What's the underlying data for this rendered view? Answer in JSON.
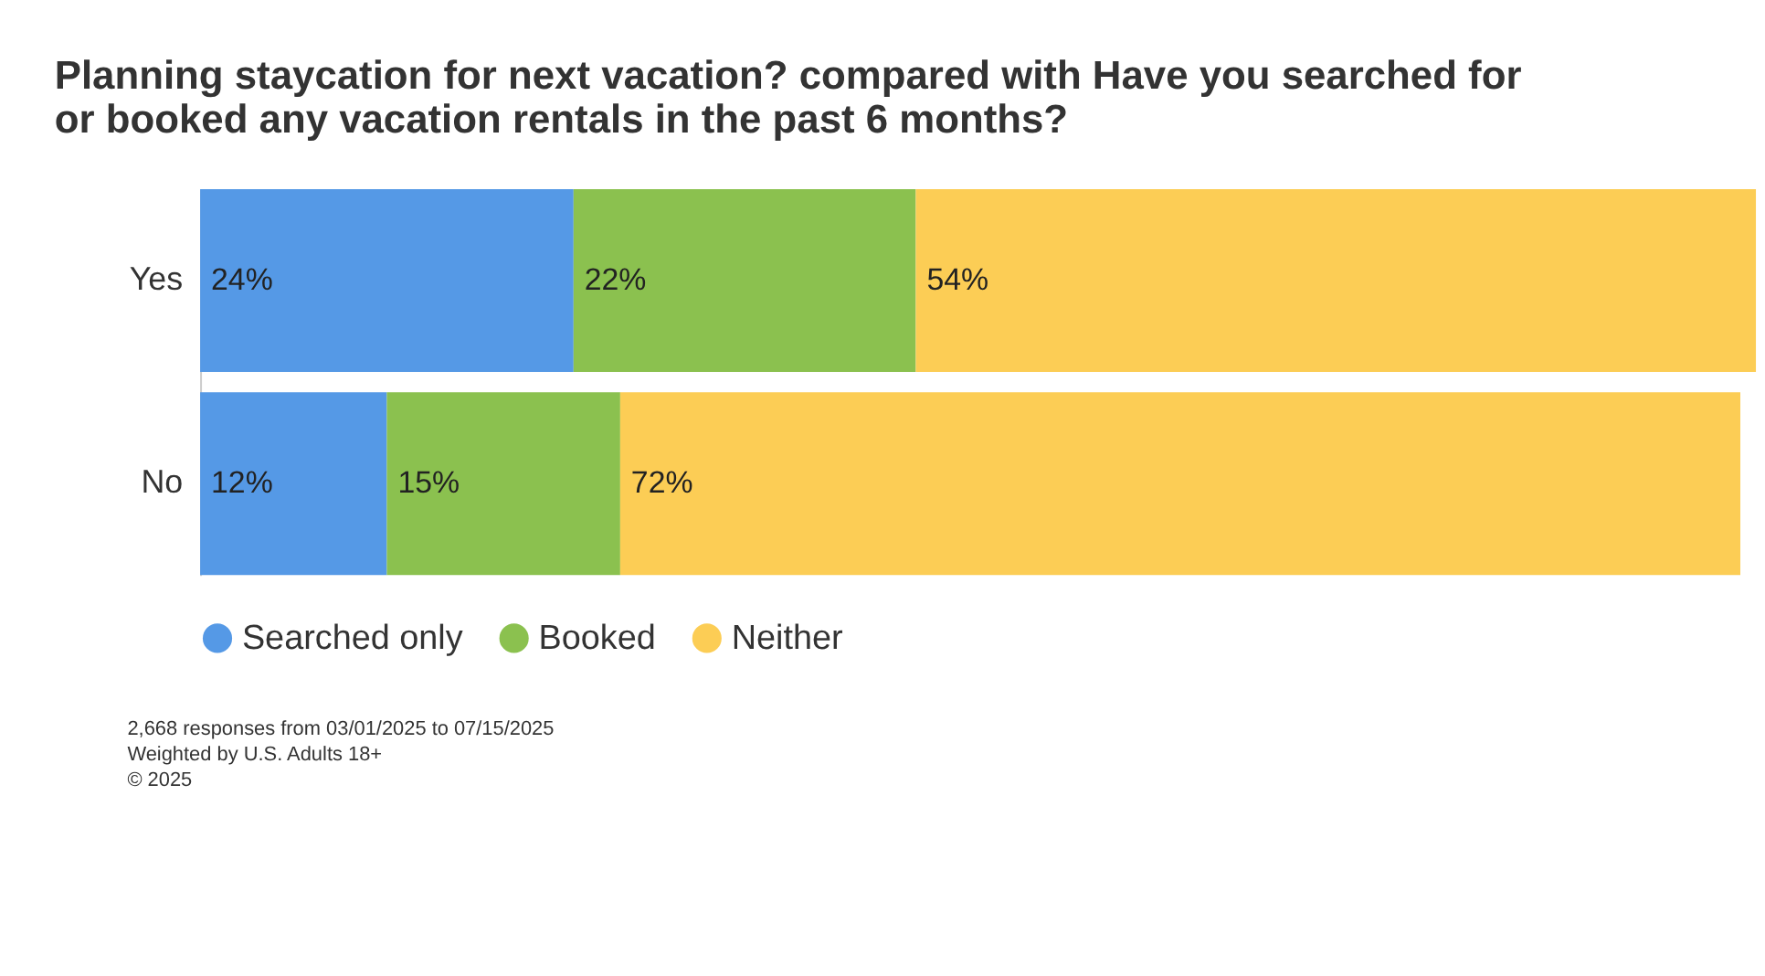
{
  "chart_data": {
    "type": "bar",
    "orientation": "horizontal",
    "stacked": true,
    "title": "Planning staycation for next vacation? compared with Have you searched for or booked any vacation rentals in the past 6 months?",
    "categories": [
      "Yes",
      "No"
    ],
    "series": [
      {
        "name": "Searched only",
        "color": "#5599e6",
        "values": [
          24,
          12
        ],
        "value_labels": [
          "24%",
          "12%"
        ]
      },
      {
        "name": "Booked",
        "color": "#8bc14f",
        "values": [
          22,
          15
        ],
        "value_labels": [
          "22%",
          "15%"
        ]
      },
      {
        "name": "Neither",
        "color": "#fccd55",
        "values": [
          54,
          72
        ],
        "value_labels": [
          "54%",
          "72%"
        ]
      }
    ],
    "legend": "bottom",
    "grid": false,
    "tick_labels": "y",
    "annotations": [
      "2,668 responses from 03/01/2025 to 07/15/2025",
      "Weighted by U.S. Adults 18+",
      "© 2025"
    ]
  }
}
